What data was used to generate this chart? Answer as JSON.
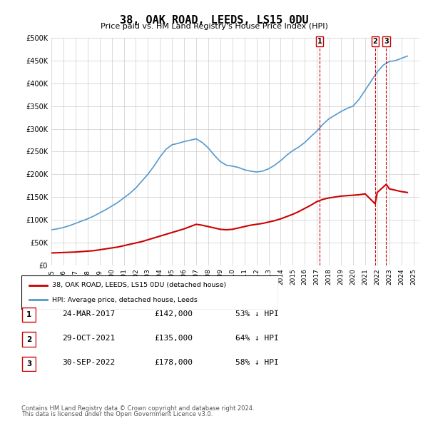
{
  "title": "38, OAK ROAD, LEEDS, LS15 0DU",
  "subtitle": "Price paid vs. HM Land Registry's House Price Index (HPI)",
  "legend_label_red": "38, OAK ROAD, LEEDS, LS15 0DU (detached house)",
  "legend_label_blue": "HPI: Average price, detached house, Leeds",
  "footer1": "Contains HM Land Registry data © Crown copyright and database right 2024.",
  "footer2": "This data is licensed under the Open Government Licence v3.0.",
  "transactions": [
    {
      "num": 1,
      "date": "24-MAR-2017",
      "price": "£142,000",
      "hpi": "53% ↓ HPI",
      "x_year": 2017.22
    },
    {
      "num": 2,
      "date": "29-OCT-2021",
      "price": "£135,000",
      "hpi": "64% ↓ HPI",
      "x_year": 2021.83
    },
    {
      "num": 3,
      "date": "30-SEP-2022",
      "price": "£178,000",
      "hpi": "58% ↓ HPI",
      "x_year": 2022.75
    }
  ],
  "hpi_x": [
    1995,
    1995.5,
    1996,
    1996.5,
    1997,
    1997.5,
    1998,
    1998.5,
    1999,
    1999.5,
    2000,
    2000.5,
    2001,
    2001.5,
    2002,
    2002.5,
    2003,
    2003.5,
    2004,
    2004.5,
    2005,
    2005.5,
    2006,
    2006.5,
    2007,
    2007.5,
    2008,
    2008.5,
    2009,
    2009.5,
    2010,
    2010.5,
    2011,
    2011.5,
    2012,
    2012.5,
    2013,
    2013.5,
    2014,
    2014.5,
    2015,
    2015.5,
    2016,
    2016.5,
    2017,
    2017.5,
    2018,
    2018.5,
    2019,
    2019.5,
    2020,
    2020.5,
    2021,
    2021.5,
    2022,
    2022.5,
    2023,
    2023.5,
    2024,
    2024.5
  ],
  "hpi_y": [
    78000,
    80000,
    83000,
    87000,
    92000,
    97000,
    102000,
    108000,
    115000,
    122000,
    130000,
    138000,
    148000,
    158000,
    170000,
    185000,
    200000,
    218000,
    238000,
    255000,
    265000,
    268000,
    272000,
    275000,
    278000,
    270000,
    258000,
    242000,
    228000,
    220000,
    218000,
    215000,
    210000,
    207000,
    205000,
    207000,
    212000,
    220000,
    230000,
    242000,
    252000,
    260000,
    270000,
    283000,
    295000,
    310000,
    322000,
    330000,
    338000,
    345000,
    350000,
    365000,
    385000,
    405000,
    425000,
    440000,
    448000,
    450000,
    455000,
    460000
  ],
  "price_x": [
    1995,
    1995.5,
    1996,
    1996.5,
    1997,
    1997.5,
    1998,
    1998.5,
    1999,
    1999.5,
    2000,
    2000.5,
    2001,
    2001.5,
    2002,
    2002.5,
    2003,
    2003.5,
    2004,
    2004.5,
    2005,
    2005.5,
    2006,
    2006.5,
    2007,
    2007.5,
    2008,
    2008.5,
    2009,
    2009.5,
    2010,
    2010.5,
    2011,
    2011.5,
    2012,
    2012.5,
    2013,
    2013.5,
    2014,
    2014.5,
    2015,
    2015.5,
    2016,
    2016.5,
    2017,
    2017.22,
    2017.5,
    2018,
    2018.5,
    2019,
    2019.5,
    2020,
    2020.5,
    2021,
    2021.83,
    2022,
    2022.75,
    2023,
    2023.5,
    2024,
    2024.5
  ],
  "price_y": [
    27000,
    27500,
    28000,
    28500,
    29000,
    30000,
    31000,
    32000,
    34000,
    36000,
    38000,
    40000,
    43000,
    46000,
    49000,
    52000,
    56000,
    60000,
    64000,
    68000,
    72000,
    76000,
    80000,
    85000,
    90000,
    88000,
    85000,
    82000,
    79000,
    78000,
    79000,
    82000,
    85000,
    88000,
    90000,
    92000,
    95000,
    98000,
    102000,
    107000,
    112000,
    118000,
    125000,
    132000,
    140000,
    142000,
    145000,
    148000,
    150000,
    152000,
    153000,
    154000,
    155000,
    157000,
    135000,
    160000,
    178000,
    168000,
    165000,
    162000,
    160000
  ],
  "ylim": [
    0,
    500000
  ],
  "yticks": [
    0,
    50000,
    100000,
    150000,
    200000,
    250000,
    300000,
    350000,
    400000,
    450000,
    500000
  ],
  "xlim": [
    1995,
    2025.5
  ],
  "xtick_years": [
    1995,
    1996,
    1997,
    1998,
    1999,
    2000,
    2001,
    2002,
    2003,
    2004,
    2005,
    2006,
    2007,
    2008,
    2009,
    2010,
    2011,
    2012,
    2013,
    2014,
    2015,
    2016,
    2017,
    2018,
    2019,
    2020,
    2021,
    2022,
    2023,
    2024,
    2025
  ],
  "red_color": "#cc0000",
  "blue_color": "#5599cc",
  "grid_color": "#cccccc",
  "bg_color": "#ffffff",
  "dashed_color": "#cc0000"
}
